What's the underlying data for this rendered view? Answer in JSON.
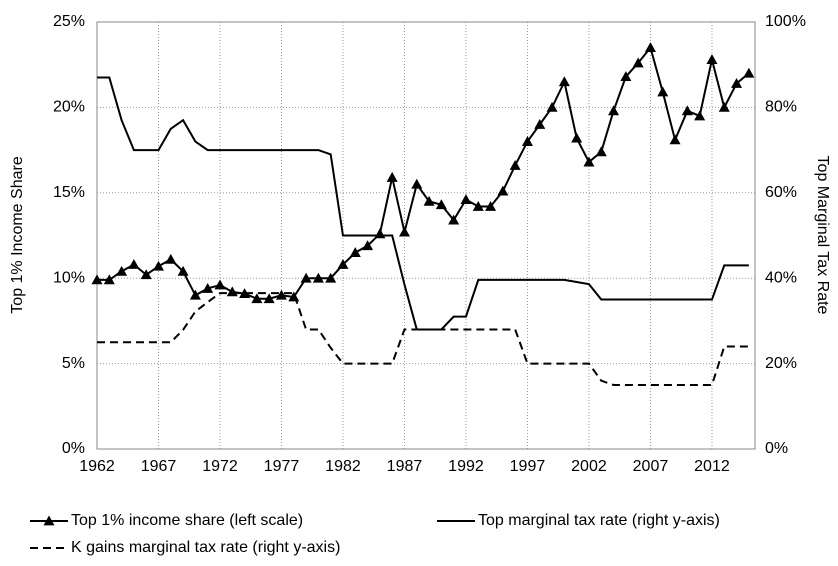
{
  "chart_data": {
    "type": "line",
    "x": [
      1962,
      1963,
      1964,
      1965,
      1966,
      1967,
      1968,
      1969,
      1970,
      1971,
      1972,
      1973,
      1974,
      1975,
      1976,
      1977,
      1978,
      1979,
      1980,
      1981,
      1982,
      1983,
      1984,
      1985,
      1986,
      1987,
      1988,
      1989,
      1990,
      1991,
      1992,
      1993,
      1994,
      1995,
      1996,
      1997,
      1998,
      1999,
      2000,
      2001,
      2002,
      2003,
      2004,
      2005,
      2006,
      2007,
      2008,
      2009,
      2010,
      2011,
      2012,
      2013,
      2014,
      2015
    ],
    "xlim": [
      1962,
      2015.5
    ],
    "xticks": [
      1962,
      1967,
      1972,
      1977,
      1982,
      1987,
      1992,
      1997,
      2002,
      2007,
      2012
    ],
    "ylim": [
      0,
      25
    ],
    "yticks": [
      {
        "value": 0,
        "label": "0%"
      },
      {
        "value": 5,
        "label": "5%"
      },
      {
        "value": 10,
        "label": "10%"
      },
      {
        "value": 15,
        "label": "15%"
      },
      {
        "value": 20,
        "label": "20%"
      },
      {
        "value": 25,
        "label": "25%"
      }
    ],
    "y2lim": [
      0,
      100
    ],
    "y2ticks": [
      {
        "value": 0,
        "label": "0%"
      },
      {
        "value": 20,
        "label": "20%"
      },
      {
        "value": 40,
        "label": "40%"
      },
      {
        "value": 60,
        "label": "60%"
      },
      {
        "value": 80,
        "label": "80%"
      },
      {
        "value": 100,
        "label": "100%"
      }
    ],
    "ylabel": "Top 1% Income Share",
    "y2label": "Top Marginal Tax Rate",
    "grid": true,
    "series": [
      {
        "name": "Top 1% income share (left scale)",
        "color": "#000000",
        "marker": "triangle",
        "dash": false,
        "axis": "y",
        "values": [
          9.9,
          9.9,
          10.4,
          10.8,
          10.2,
          10.7,
          11.1,
          10.4,
          9.0,
          9.4,
          9.6,
          9.2,
          9.1,
          8.8,
          8.8,
          9.0,
          8.9,
          10.0,
          10.0,
          10.0,
          10.8,
          11.5,
          11.9,
          12.6,
          15.9,
          12.7,
          15.5,
          14.5,
          14.3,
          13.4,
          14.6,
          14.2,
          14.2,
          15.1,
          16.6,
          18.0,
          19.0,
          20.0,
          21.5,
          18.2,
          16.8,
          17.4,
          19.8,
          21.8,
          22.6,
          23.5,
          20.9,
          18.1,
          19.8,
          19.5,
          22.8,
          20.0,
          21.4,
          22.0
        ]
      },
      {
        "name": "Top marginal tax rate (right y-axis)",
        "color": "#000000",
        "marker": "none",
        "dash": false,
        "axis": "y2",
        "values": [
          87,
          87,
          77,
          70,
          70,
          70,
          75,
          77,
          72,
          70,
          70,
          70,
          70,
          70,
          70,
          70,
          70,
          70,
          70,
          69,
          50,
          50,
          50,
          50,
          50,
          38.5,
          28,
          28,
          28,
          31,
          31,
          39.6,
          39.6,
          39.6,
          39.6,
          39.6,
          39.6,
          39.6,
          39.6,
          39.1,
          38.6,
          35,
          35,
          35,
          35,
          35,
          35,
          35,
          35,
          35,
          35,
          43,
          43,
          43
        ]
      },
      {
        "name": "K gains marginal tax rate (right y-axis)",
        "color": "#000000",
        "marker": "none",
        "dash": true,
        "axis": "y2",
        "values": [
          25,
          25,
          25,
          25,
          25,
          25,
          25,
          27.9,
          32.2,
          34.4,
          36.5,
          36.5,
          36.5,
          36.5,
          36.5,
          36.5,
          36.5,
          28,
          28,
          23.7,
          20,
          20,
          20,
          20,
          20,
          28,
          28,
          28,
          28,
          28,
          28,
          28,
          28,
          28,
          28,
          20,
          20,
          20,
          20,
          20,
          20,
          16,
          15,
          15,
          15,
          15,
          15,
          15,
          15,
          15,
          15,
          24,
          24,
          24
        ]
      }
    ]
  }
}
